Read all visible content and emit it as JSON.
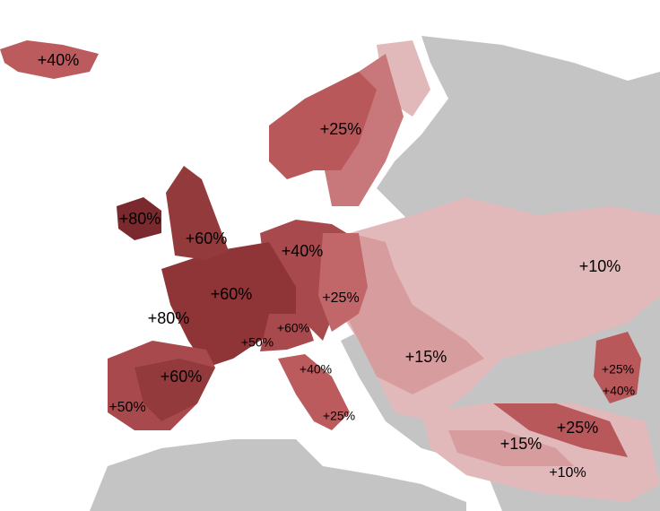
{
  "labels": [
    "+40%",
    "+25%",
    "+80%",
    "+60%",
    "+40%",
    "+10%",
    "+60%",
    "+25%",
    "+80%",
    "+60%",
    "+50%",
    "+15%",
    "+40%",
    "+25%",
    "+60%",
    "+40%",
    "+50%",
    "+25%",
    "+25%",
    "+15%",
    "+10%"
  ]
}
